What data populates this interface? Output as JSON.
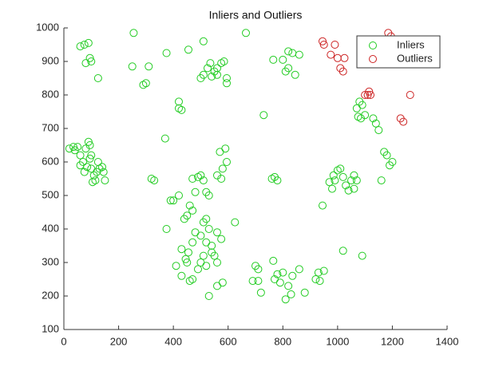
{
  "chart_data": {
    "type": "scatter",
    "title": "Inliers and Outliers",
    "xlim": [
      0,
      1400
    ],
    "xticks": [
      0,
      200,
      400,
      600,
      800,
      1000,
      1200,
      1400
    ],
    "ylim": [
      100,
      1000
    ],
    "yticks": [
      100,
      200,
      300,
      400,
      500,
      600,
      700,
      800,
      900,
      1000
    ],
    "grid": false,
    "legend_position": "upper right",
    "series": [
      {
        "name": "Inliers",
        "color": "#22cc22",
        "x": [
          60,
          75,
          90,
          80,
          95,
          100,
          125,
          255,
          250,
          310,
          300,
          290,
          375,
          455,
          510,
          665,
          420,
          420,
          430,
          370,
          500,
          510,
          525,
          535,
          550,
          560,
          575,
          585,
          595,
          595,
          540,
          560,
          765,
          800,
          810,
          820,
          835,
          845,
          860,
          820,
          20,
          35,
          50,
          60,
          70,
          80,
          90,
          95,
          100,
          85,
          75,
          100,
          110,
          120,
          130,
          140,
          150,
          105,
          115,
          60,
          40,
          95,
          145,
          125,
          320,
          330,
          390,
          400,
          375,
          470,
          490,
          500,
          510,
          520,
          530,
          480,
          460,
          450,
          470,
          440,
          420,
          430,
          445,
          455,
          470,
          480,
          500,
          510,
          520,
          530,
          540,
          550,
          560,
          520,
          500,
          510,
          490,
          470,
          450,
          460,
          530,
          560,
          580,
          575,
          560,
          540,
          520,
          430,
          410,
          570,
          575,
          590,
          580,
          595,
          560,
          625,
          730,
          760,
          770,
          780,
          700,
          710,
          720,
          690,
          710,
          765,
          770,
          780,
          790,
          800,
          810,
          820,
          830,
          835,
          860,
          880,
          920,
          930,
          935,
          950,
          945,
          970,
          985,
          990,
          1000,
          1010,
          1020,
          1030,
          1040,
          1050,
          1060,
          1060,
          1070,
          980,
          1020,
          1090,
          1070,
          1080,
          1090,
          1100,
          1075,
          1085,
          1130,
          1140,
          1150,
          1170,
          1180,
          1190,
          1200,
          1160
        ],
        "values": [
          945,
          950,
          955,
          895,
          910,
          900,
          850,
          985,
          885,
          885,
          835,
          830,
          925,
          935,
          960,
          985,
          780,
          760,
          755,
          670,
          850,
          860,
          880,
          895,
          870,
          880,
          895,
          900,
          850,
          835,
          855,
          860,
          905,
          905,
          870,
          880,
          925,
          860,
          920,
          930,
          640,
          645,
          645,
          620,
          600,
          640,
          660,
          650,
          620,
          585,
          570,
          580,
          560,
          570,
          580,
          585,
          545,
          540,
          545,
          590,
          635,
          610,
          570,
          600,
          550,
          545,
          485,
          485,
          400,
          550,
          555,
          560,
          545,
          510,
          500,
          510,
          470,
          440,
          455,
          430,
          500,
          340,
          310,
          330,
          360,
          390,
          380,
          420,
          430,
          400,
          350,
          320,
          300,
          290,
          300,
          320,
          280,
          250,
          300,
          245,
          200,
          230,
          240,
          370,
          390,
          330,
          360,
          260,
          290,
          630,
          550,
          640,
          580,
          600,
          560,
          420,
          740,
          550,
          555,
          545,
          290,
          280,
          210,
          245,
          245,
          305,
          250,
          265,
          240,
          270,
          190,
          230,
          205,
          260,
          280,
          210,
          250,
          270,
          245,
          275,
          470,
          540,
          560,
          545,
          575,
          580,
          555,
          530,
          515,
          545,
          560,
          520,
          545,
          520,
          335,
          320,
          760,
          780,
          770,
          740,
          735,
          730,
          730,
          715,
          695,
          630,
          620,
          590,
          600,
          545
        ]
      },
      {
        "name": "Outliers",
        "color": "#cc2222",
        "x": [
          945,
          950,
          975,
          990,
          1000,
          1010,
          1020,
          1025,
          1100,
          1110,
          1115,
          1120,
          1185,
          1195,
          1230,
          1240,
          1265
        ],
        "values": [
          960,
          950,
          920,
          950,
          910,
          880,
          870,
          910,
          800,
          800,
          810,
          800,
          985,
          975,
          730,
          720,
          800
        ]
      }
    ]
  }
}
